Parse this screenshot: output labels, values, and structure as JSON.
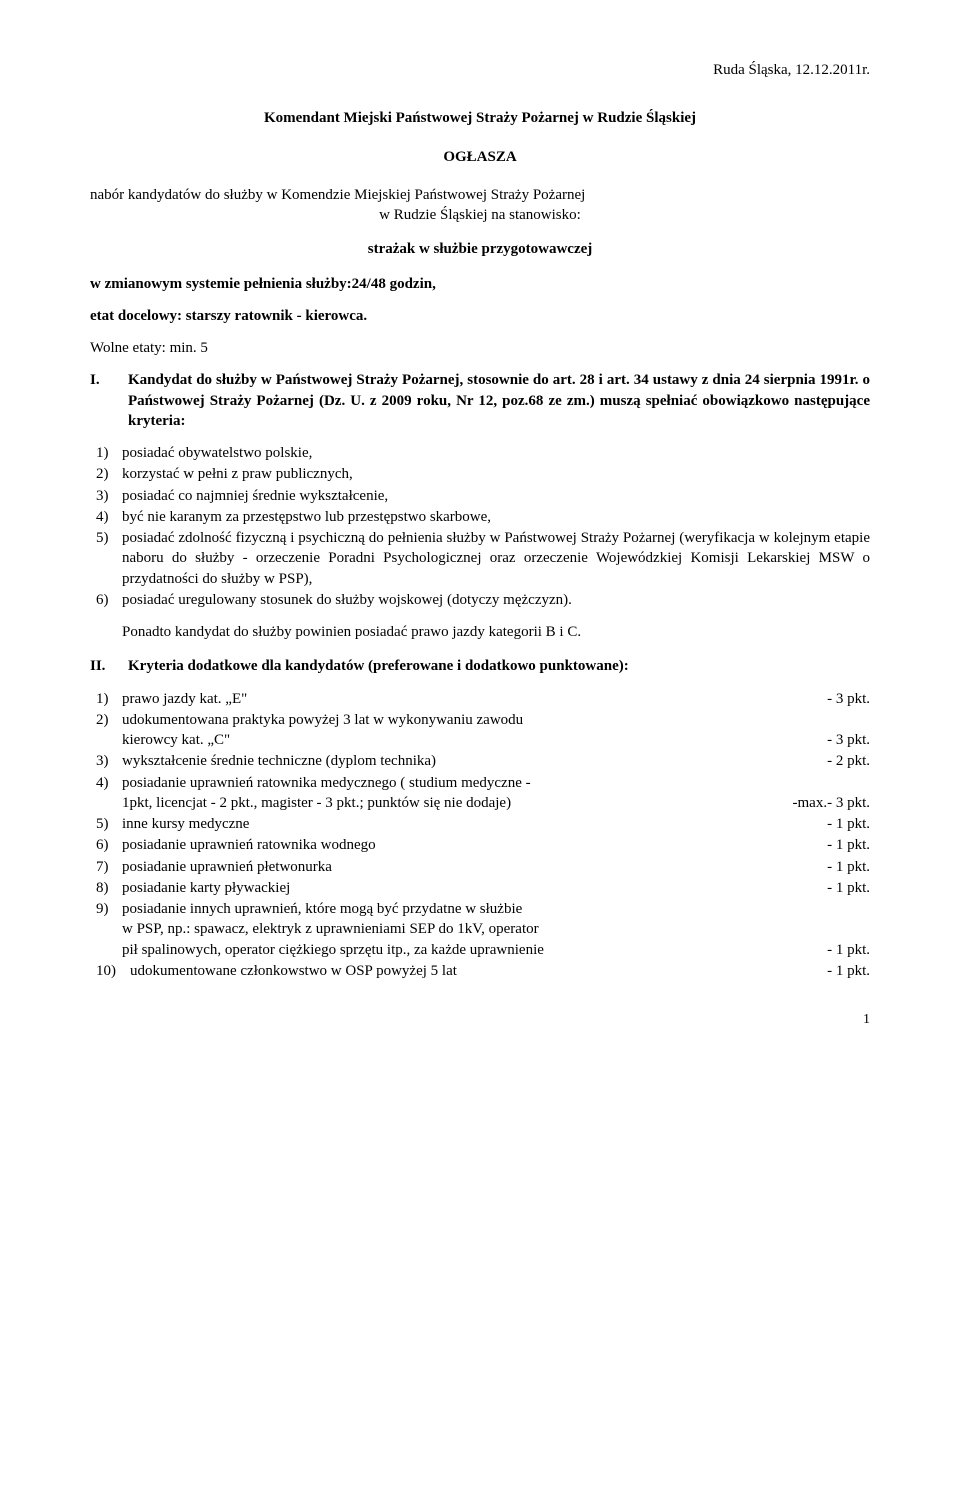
{
  "date_location": "Ruda Śląska, 12.12.2011r.",
  "header": "Komendant Miejski Państwowej Straży Pożarnej w Rudzie Śląskiej",
  "announce": "OGŁASZA",
  "intro_line1": "nabór kandydatów do służby w Komendzie Miejskiej Państwowej Straży Pożarnej",
  "intro_line2": "w Rudzie Śląskiej na stanowisko:",
  "position": "strażak w służbie przygotowawczej",
  "system_line": "w zmianowym systemie pełnienia służby:24/48 godzin,",
  "etat_line": "etat docelowy: starszy ratownik - kierowca.",
  "wolne_line": "Wolne etaty: min. 5",
  "section1": {
    "num": "I.",
    "text": "Kandydat do służby w Państwowej Straży Pożarnej, stosownie do art. 28 i art. 34 ustawy z dnia 24 sierpnia 1991r. o Państwowej Straży Pożarnej (Dz. U. z 2009 roku, Nr 12, poz.68 ze zm.) muszą spełniać obowiązkowo następujące kryteria:"
  },
  "req": [
    {
      "n": "1)",
      "t": "posiadać obywatelstwo polskie,"
    },
    {
      "n": "2)",
      "t": "korzystać w pełni z praw publicznych,"
    },
    {
      "n": "3)",
      "t": "posiadać co najmniej średnie wykształcenie,"
    },
    {
      "n": "4)",
      "t": "być nie karanym za przestępstwo lub przestępstwo skarbowe,"
    },
    {
      "n": "5)",
      "t": "posiadać zdolność fizyczną i psychiczną do pełnienia służby w Państwowej Straży Pożarnej (weryfikacja w kolejnym etapie naboru do służby - orzeczenie Poradni Psychologicznej oraz orzeczenie Wojewódzkiej Komisji Lekarskiej MSW o przydatności do służby w PSP),"
    },
    {
      "n": "6)",
      "t": "posiadać uregulowany stosunek do służby wojskowej (dotyczy mężczyzn)."
    }
  ],
  "ponadto": "Ponadto kandydat do służby powinien posiadać prawo jazdy kategorii B i C.",
  "section2": {
    "num": "II.",
    "text": "Kryteria dodatkowe dla kandydatów (preferowane i dodatkowo punktowane):"
  },
  "crit": [
    {
      "n": "1)",
      "lines": [
        {
          "l": "prawo jazdy kat. „E\"",
          "p": "- 3 pkt."
        }
      ]
    },
    {
      "n": "2)",
      "lines": [
        {
          "l": "udokumentowana praktyka powyżej 3 lat w wykonywaniu zawodu",
          "p": ""
        },
        {
          "l": "kierowcy kat. „C\"",
          "p": "- 3 pkt."
        }
      ]
    },
    {
      "n": "3)",
      "lines": [
        {
          "l": "wykształcenie średnie techniczne (dyplom technika)",
          "p": "- 2 pkt."
        }
      ]
    },
    {
      "n": "4)",
      "lines": [
        {
          "l": "posiadanie uprawnień ratownika medycznego ( studium medyczne -",
          "p": ""
        },
        {
          "l": "1pkt, licencjat - 2 pkt., magister - 3 pkt.; punktów się nie dodaje)",
          "p": "-max.- 3 pkt."
        }
      ]
    },
    {
      "n": "5)",
      "lines": [
        {
          "l": "inne kursy medyczne",
          "p": "- 1 pkt."
        }
      ]
    },
    {
      "n": "6)",
      "lines": [
        {
          "l": "posiadanie uprawnień ratownika wodnego",
          "p": "- 1 pkt."
        }
      ]
    },
    {
      "n": "7)",
      "lines": [
        {
          "l": "posiadanie uprawnień płetwonurka",
          "p": "- 1 pkt."
        }
      ]
    },
    {
      "n": "8)",
      "lines": [
        {
          "l": "posiadanie karty pływackiej",
          "p": "- 1 pkt."
        }
      ]
    },
    {
      "n": "9)",
      "lines": [
        {
          "l": "posiadanie innych uprawnień, które mogą być przydatne w służbie",
          "p": ""
        },
        {
          "l": "w PSP, np.: spawacz, elektryk z uprawnieniami SEP do 1kV, operator",
          "p": ""
        },
        {
          "l": "pił spalinowych, operator ciężkiego sprzętu itp., za każde uprawnienie",
          "p": "- 1 pkt."
        }
      ]
    },
    {
      "n": "10)",
      "wide": true,
      "lines": [
        {
          "l": "udokumentowane członkowstwo w OSP powyżej 5 lat",
          "p": "- 1 pkt."
        }
      ]
    }
  ],
  "page_num": "1"
}
